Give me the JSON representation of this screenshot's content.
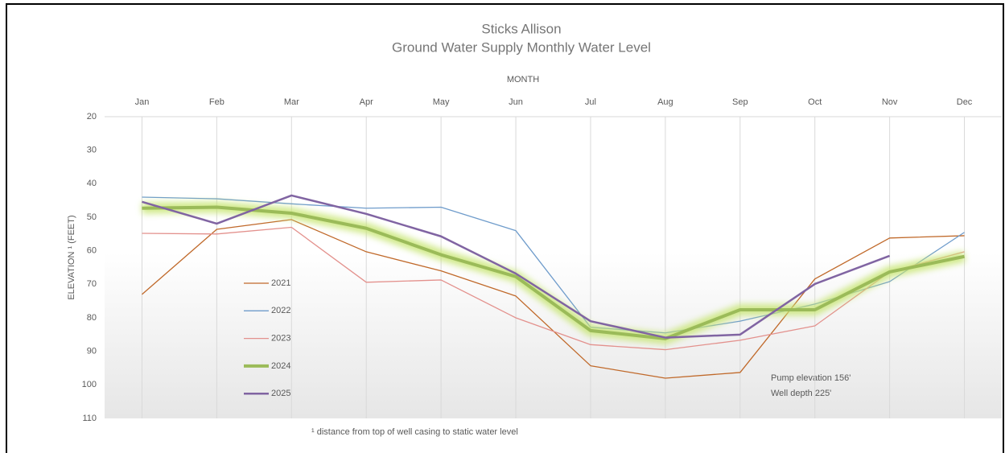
{
  "chart_data": {
    "type": "line",
    "title": "Sticks Allison",
    "subtitle": "Ground Water Supply Monthly Water Level",
    "x_label": "MONTH",
    "y_label": "ELEVATION ¹ (FEET)",
    "footnote": "¹ distance from top of well casing to static water level",
    "annotations": [
      "Pump elevation 156'",
      "Well depth 225'"
    ],
    "categories": [
      "Jan",
      "Feb",
      "Mar",
      "Apr",
      "May",
      "Jun",
      "Jul",
      "Aug",
      "Sep",
      "Oct",
      "Nov",
      "Dec"
    ],
    "series": [
      {
        "name": "2021",
        "color": "#c0692a",
        "values": [
          73,
          53.6,
          50.7,
          60.3,
          66,
          73.5,
          94.3,
          98,
          96.3,
          68.4,
          56.2,
          55.5
        ]
      },
      {
        "name": "2022",
        "color": "#6f9ccb",
        "values": [
          44,
          44.5,
          46,
          47.3,
          47,
          54,
          82.8,
          84.5,
          81,
          75.9,
          69.2,
          54.5
        ]
      },
      {
        "name": "2023",
        "color": "#e3918d",
        "values": [
          54.8,
          55,
          53,
          69.4,
          68.7,
          80,
          88,
          89.5,
          86.7,
          82.4,
          66.3,
          60.3
        ]
      },
      {
        "name": "2024",
        "color": "#9bbb59",
        "glow": true,
        "values": [
          47.3,
          47,
          48.8,
          53.3,
          61.2,
          67.7,
          83.8,
          86.2,
          77.6,
          77.6,
          66.3,
          61.7
        ]
      },
      {
        "name": "2025",
        "color": "#8064a2",
        "values": [
          45.4,
          51.9,
          43.5,
          49,
          55.7,
          66.8,
          81,
          85.9,
          85,
          69.9,
          61.5,
          null
        ]
      }
    ],
    "ylim": [
      20,
      110
    ],
    "y_inverted": true,
    "yticks": [
      20,
      30,
      40,
      50,
      60,
      70,
      80,
      90,
      100,
      110
    ],
    "x_axis_position": "top",
    "legend": "left"
  }
}
